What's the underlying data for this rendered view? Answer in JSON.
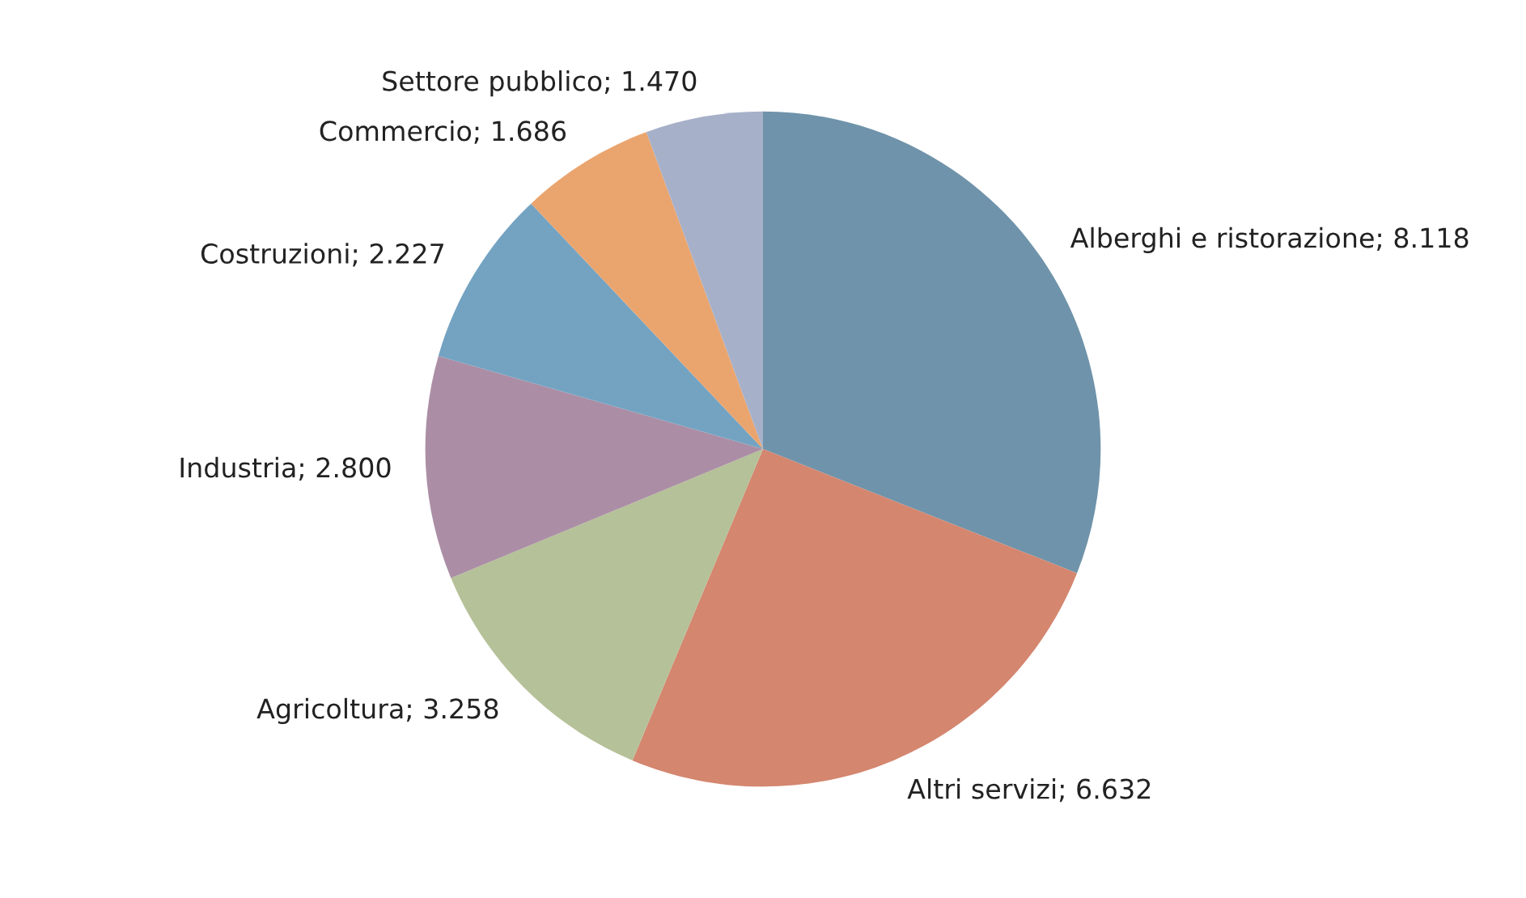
{
  "chart_data": {
    "type": "pie",
    "categories": [
      "Alberghi e ristorazione",
      "Altri servizi",
      "Agricoltura",
      "Industria",
      "Costruzioni",
      "Commercio",
      "Settore pubblico"
    ],
    "values": [
      8118,
      6632,
      3258,
      2800,
      2227,
      1686,
      1470
    ],
    "value_labels": [
      "8.118",
      "6.632",
      "3.258",
      "2.800",
      "2.227",
      "1.686",
      "1.470"
    ],
    "colors": [
      "#6f93aa",
      "#d4866f",
      "#b5c198",
      "#ab8ea5",
      "#74a3c2",
      "#eaa56f",
      "#a6b0c9"
    ],
    "legend": false
  }
}
